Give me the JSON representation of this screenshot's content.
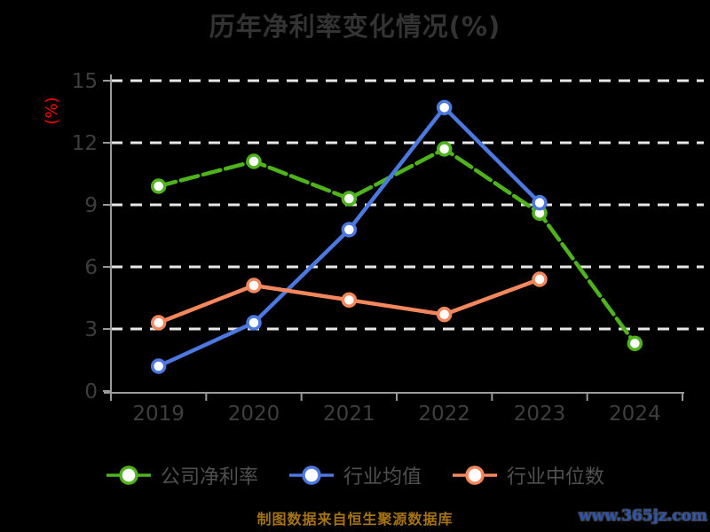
{
  "title": "历年净利率变化情况(%)",
  "y_axis_name": "(%)",
  "source_note": "制图数据来自恒生聚源数据库",
  "watermark": "www.365jz.com",
  "colors": {
    "background": "#000000",
    "title_text": "#333333",
    "axis_line": "#9a9a9a",
    "tick_label": "#3e3e3e",
    "gridline": "#e8e8e8",
    "legend_text": "#505050",
    "y_axis_name_color": "#ff0000",
    "source_note_color": "#a5730f",
    "watermark_color": "#2c55b2",
    "marker_fill": "#ffffff"
  },
  "chart_data": {
    "type": "line",
    "title": "历年净利率变化情况(%)",
    "xlabel": "",
    "ylabel": "(%)",
    "categories": [
      "2019",
      "2020",
      "2021",
      "2022",
      "2023",
      "2024"
    ],
    "series": [
      {
        "name": "公司净利率",
        "color": "#4fb41c",
        "dashed": true,
        "values": [
          9.9,
          11.1,
          9.3,
          11.7,
          8.6,
          2.3
        ]
      },
      {
        "name": "行业均值",
        "color": "#4b79e0",
        "dashed": false,
        "values": [
          1.2,
          3.3,
          7.8,
          13.7,
          9.1,
          null
        ]
      },
      {
        "name": "行业中位数",
        "color": "#f5875c",
        "dashed": false,
        "values": [
          3.3,
          5.1,
          4.4,
          3.7,
          5.4,
          null
        ]
      }
    ],
    "ylim": [
      0,
      15
    ],
    "yticks": [
      0,
      3,
      6,
      9,
      12,
      15
    ],
    "grid": "horizontal-dashed-white",
    "legend_position": "bottom"
  }
}
